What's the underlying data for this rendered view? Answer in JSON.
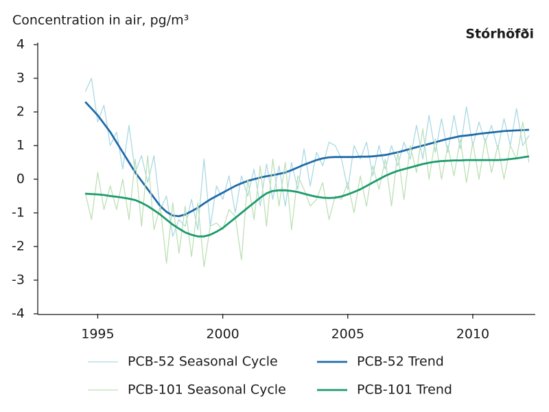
{
  "chart_data": {
    "type": "line",
    "y_label": "Concentration in air, pg/m³",
    "annotation": "Stórhöfði",
    "xlim": [
      1992.6,
      2012.5
    ],
    "xticks": [
      1995,
      2000,
      2005,
      2010
    ],
    "ylim": [
      -4,
      4
    ],
    "yticks": [
      -4,
      -3,
      -2,
      -1,
      0,
      1,
      2,
      3,
      4
    ],
    "grid": false,
    "x": [
      1994.5,
      1994.75,
      1995,
      1995.25,
      1995.5,
      1995.75,
      1996,
      1996.25,
      1996.5,
      1996.75,
      1997,
      1997.25,
      1997.5,
      1997.75,
      1998,
      1998.25,
      1998.5,
      1998.75,
      1999,
      1999.25,
      1999.5,
      1999.75,
      2000,
      2000.25,
      2000.5,
      2000.75,
      2001,
      2001.25,
      2001.5,
      2001.75,
      2002,
      2002.25,
      2002.5,
      2002.75,
      2003,
      2003.25,
      2003.5,
      2003.75,
      2004,
      2004.25,
      2004.5,
      2004.75,
      2005,
      2005.25,
      2005.5,
      2005.75,
      2006,
      2006.25,
      2006.5,
      2006.75,
      2007,
      2007.25,
      2007.5,
      2007.75,
      2008,
      2008.25,
      2008.5,
      2008.75,
      2009,
      2009.25,
      2009.5,
      2009.75,
      2010,
      2010.25,
      2010.5,
      2010.75,
      2011,
      2011.25,
      2011.5,
      2011.75,
      2012,
      2012.25
    ],
    "series": [
      {
        "name": "PCB-52 Seasonal Cycle",
        "color": "#a9d9e3",
        "width": 1.3,
        "values": [
          2.6,
          3.0,
          1.7,
          2.2,
          1.0,
          1.4,
          0.3,
          1.6,
          0.2,
          0.7,
          -0.1,
          0.7,
          -0.9,
          -0.5,
          -1.7,
          -1.2,
          -1.4,
          -0.6,
          -1.5,
          0.6,
          -1.4,
          -0.2,
          -0.6,
          0.1,
          -1.0,
          0.1,
          -0.5,
          0.3,
          -0.8,
          0.45,
          -0.6,
          0.4,
          -0.8,
          0.5,
          -0.3,
          0.9,
          -0.2,
          0.8,
          0.4,
          1.1,
          1.0,
          0.6,
          -0.3,
          1.0,
          0.6,
          1.1,
          0.1,
          1.0,
          0.3,
          1.0,
          0.4,
          1.1,
          0.6,
          1.6,
          0.6,
          1.9,
          0.8,
          1.8,
          0.8,
          1.9,
          0.9,
          2.15,
          1.0,
          1.7,
          1.1,
          1.6,
          0.9,
          1.8,
          1.0,
          2.1,
          1.0,
          1.3
        ]
      },
      {
        "name": "PCB-52 Trend",
        "color": "#1f6aa8",
        "width": 2.8,
        "values": [
          2.3,
          2.1,
          1.9,
          1.65,
          1.4,
          1.1,
          0.8,
          0.5,
          0.2,
          -0.05,
          -0.3,
          -0.55,
          -0.8,
          -0.97,
          -1.08,
          -1.1,
          -1.05,
          -0.95,
          -0.85,
          -0.72,
          -0.6,
          -0.5,
          -0.4,
          -0.3,
          -0.2,
          -0.12,
          -0.05,
          0,
          0.05,
          0.09,
          0.12,
          0.16,
          0.2,
          0.27,
          0.35,
          0.43,
          0.5,
          0.57,
          0.62,
          0.65,
          0.66,
          0.66,
          0.66,
          0.66,
          0.67,
          0.67,
          0.68,
          0.7,
          0.72,
          0.76,
          0.8,
          0.85,
          0.9,
          0.95,
          1.0,
          1.05,
          1.1,
          1.15,
          1.2,
          1.24,
          1.28,
          1.3,
          1.32,
          1.35,
          1.37,
          1.39,
          1.41,
          1.43,
          1.44,
          1.45,
          1.46,
          1.47
        ]
      },
      {
        "name": "PCB-101 Seasonal Cycle",
        "color": "#bde0b5",
        "width": 1.3,
        "values": [
          -0.4,
          -1.2,
          0.2,
          -0.9,
          -0.2,
          -0.9,
          0.0,
          -1.2,
          0.6,
          -1.4,
          0.7,
          -1.5,
          -0.8,
          -2.5,
          -0.7,
          -2.2,
          -0.8,
          -2.3,
          -0.7,
          -2.6,
          -1.4,
          -1.3,
          -1.5,
          -0.9,
          -1.1,
          -2.4,
          0.0,
          -1.2,
          0.4,
          -1.4,
          0.6,
          -0.8,
          0.5,
          -1.5,
          0.1,
          -0.3,
          -0.8,
          -0.6,
          -0.1,
          -1.2,
          -0.5,
          -0.6,
          -0.1,
          -1.0,
          0.1,
          -0.8,
          0.4,
          -0.3,
          0.6,
          -0.8,
          0.8,
          -0.6,
          1.0,
          0.2,
          1.5,
          0.0,
          1.2,
          0.0,
          1.0,
          0.1,
          1.2,
          -0.1,
          1.1,
          0.0,
          1.2,
          0.2,
          1.0,
          0.0,
          1.0,
          0.6,
          1.7,
          0.5
        ]
      },
      {
        "name": "PCB-101 Trend",
        "color": "#1b9a6c",
        "width": 2.8,
        "values": [
          -0.43,
          -0.44,
          -0.45,
          -0.47,
          -0.5,
          -0.52,
          -0.55,
          -0.58,
          -0.62,
          -0.7,
          -0.8,
          -0.92,
          -1.05,
          -1.2,
          -1.35,
          -1.47,
          -1.58,
          -1.65,
          -1.7,
          -1.7,
          -1.65,
          -1.56,
          -1.45,
          -1.3,
          -1.15,
          -1.0,
          -0.85,
          -0.7,
          -0.55,
          -0.42,
          -0.35,
          -0.33,
          -0.33,
          -0.35,
          -0.38,
          -0.43,
          -0.48,
          -0.52,
          -0.55,
          -0.56,
          -0.55,
          -0.51,
          -0.45,
          -0.38,
          -0.3,
          -0.2,
          -0.1,
          0,
          0.1,
          0.18,
          0.25,
          0.3,
          0.35,
          0.4,
          0.45,
          0.49,
          0.52,
          0.54,
          0.55,
          0.56,
          0.56,
          0.57,
          0.57,
          0.57,
          0.57,
          0.57,
          0.57,
          0.58,
          0.6,
          0.62,
          0.65,
          0.68
        ]
      }
    ]
  }
}
